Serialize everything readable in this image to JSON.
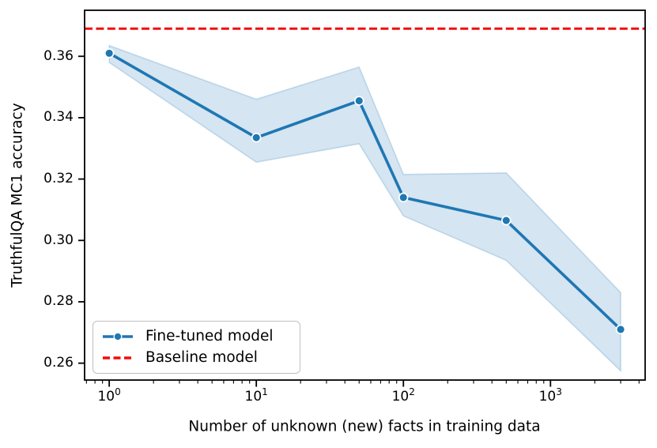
{
  "chart_data": {
    "type": "line",
    "title": "",
    "xlabel": "Number of unknown (new) facts in training data",
    "ylabel": "TruthfulQA MC1 accuracy",
    "x_scale": "log",
    "grid": false,
    "xlim": [
      0.68,
      4400
    ],
    "ylim": [
      0.2545,
      0.375
    ],
    "x": [
      1,
      10,
      50,
      100,
      500,
      3000
    ],
    "series": [
      {
        "name": "Fine-tuned model",
        "style": "solid-line-with-circle-markers",
        "color": "#1f77b4",
        "values": [
          0.361,
          0.3335,
          0.3455,
          0.314,
          0.3065,
          0.271
        ],
        "band_low": [
          0.358,
          0.3255,
          0.3315,
          0.308,
          0.2935,
          0.2575
        ],
        "band_high": [
          0.3635,
          0.346,
          0.3565,
          0.3215,
          0.322,
          0.283
        ],
        "band_opacity": 0.19
      },
      {
        "name": "Baseline model",
        "style": "horizontal-dashed-line",
        "color": "#f40b0b",
        "value": 0.369
      }
    ],
    "yticks": [
      {
        "value": 0.26,
        "label": "0.26"
      },
      {
        "value": 0.28,
        "label": "0.28"
      },
      {
        "value": 0.3,
        "label": "0.30"
      },
      {
        "value": 0.32,
        "label": "0.32"
      },
      {
        "value": 0.34,
        "label": "0.34"
      },
      {
        "value": 0.36,
        "label": "0.36"
      }
    ],
    "xticks": [
      {
        "value": 1,
        "base": "10",
        "exponent": "0"
      },
      {
        "value": 10,
        "base": "10",
        "exponent": "1"
      },
      {
        "value": 100,
        "base": "10",
        "exponent": "2"
      },
      {
        "value": 1000,
        "base": "10",
        "exponent": "3"
      }
    ],
    "legend": {
      "position": "lower left",
      "entries": [
        {
          "label": "Fine-tuned model"
        },
        {
          "label": "Baseline model"
        }
      ]
    }
  },
  "colors": {
    "line_blue": "#1f77b4",
    "baseline_red": "#f40b0b",
    "band_blue": "#1f77b4",
    "spine_black": "#000000",
    "legend_border": "#c0c0c0"
  }
}
